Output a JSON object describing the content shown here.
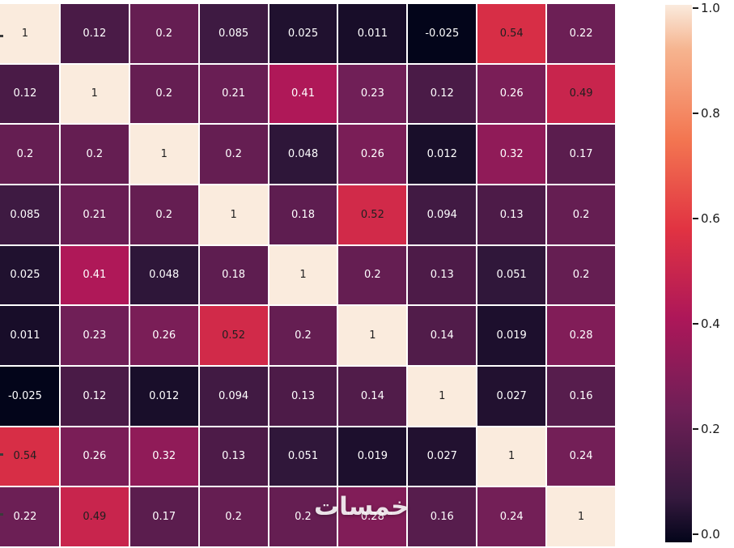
{
  "chart_data": {
    "type": "heatmap",
    "title": "",
    "rows": 9,
    "cols": 9,
    "vmin": -0.025,
    "vmax": 1.0,
    "matrix": [
      [
        1,
        0.12,
        0.2,
        0.085,
        0.025,
        0.011,
        -0.025,
        0.54,
        0.22
      ],
      [
        0.12,
        1,
        0.2,
        0.21,
        0.41,
        0.23,
        0.12,
        0.26,
        0.49
      ],
      [
        0.2,
        0.2,
        1,
        0.2,
        0.048,
        0.26,
        0.012,
        0.32,
        0.17
      ],
      [
        0.085,
        0.21,
        0.2,
        1,
        0.18,
        0.52,
        0.094,
        0.13,
        0.2
      ],
      [
        0.025,
        0.41,
        0.048,
        0.18,
        1,
        0.2,
        0.13,
        0.051,
        0.2
      ],
      [
        0.011,
        0.23,
        0.26,
        0.52,
        0.2,
        1,
        0.14,
        0.019,
        0.28
      ],
      [
        -0.025,
        0.12,
        0.012,
        0.094,
        0.13,
        0.14,
        1,
        0.027,
        0.16
      ],
      [
        0.54,
        0.26,
        0.32,
        0.13,
        0.051,
        0.019,
        0.027,
        1,
        0.24
      ],
      [
        0.22,
        0.49,
        0.17,
        0.2,
        0.2,
        0.28,
        0.16,
        0.24,
        1
      ]
    ],
    "labels": [
      [
        "1",
        "0.12",
        "0.2",
        "0.085",
        "0.025",
        "0.011",
        "-0.025",
        "0.54",
        "0.22"
      ],
      [
        "0.12",
        "1",
        "0.2",
        "0.21",
        "0.41",
        "0.23",
        "0.12",
        "0.26",
        "0.49"
      ],
      [
        "0.2",
        "0.2",
        "1",
        "0.2",
        "0.048",
        "0.26",
        "0.012",
        "0.32",
        "0.17"
      ],
      [
        "0.085",
        "0.21",
        "0.2",
        "1",
        "0.18",
        "0.52",
        "0.094",
        "0.13",
        "0.2"
      ],
      [
        "0.025",
        "0.41",
        "0.048",
        "0.18",
        "1",
        "0.2",
        "0.13",
        "0.051",
        "0.2"
      ],
      [
        "0.011",
        "0.23",
        "0.26",
        "0.52",
        "0.2",
        "1",
        "0.14",
        "0.019",
        "0.28"
      ],
      [
        "-0.025",
        "0.12",
        "0.012",
        "0.094",
        "0.13",
        "0.14",
        "1",
        "0.027",
        "0.16"
      ],
      [
        "0.54",
        "0.26",
        "0.32",
        "0.13",
        "0.051",
        "0.019",
        "0.027",
        "1",
        "0.24"
      ],
      [
        "0.22",
        "0.49",
        "0.17",
        "0.2",
        "0.2",
        "0.28",
        "0.16",
        "0.24",
        "1"
      ]
    ],
    "colormap": {
      "name": "rocket",
      "stops": [
        {
          "pos": 0.0,
          "rgb": [
            3,
            5,
            26
          ]
        },
        {
          "pos": 0.083,
          "rgb": [
            53,
            25,
            62
          ]
        },
        {
          "pos": 0.25,
          "rgb": [
            112,
            31,
            87
          ]
        },
        {
          "pos": 0.417,
          "rgb": [
            173,
            23,
            89
          ]
        },
        {
          "pos": 0.583,
          "rgb": [
            225,
            51,
            66
          ]
        },
        {
          "pos": 0.75,
          "rgb": [
            243,
            118,
            81
          ]
        },
        {
          "pos": 0.917,
          "rgb": [
            246,
            180,
            143
          ]
        },
        {
          "pos": 1.0,
          "rgb": [
            250,
            235,
            221
          ]
        }
      ]
    },
    "colorbar": {
      "position": "right",
      "ticks": [
        {
          "label": "1.0",
          "value": 1.0
        },
        {
          "label": "0.8",
          "value": 0.8
        },
        {
          "label": "0.6",
          "value": 0.6
        },
        {
          "label": "0.4",
          "value": 0.4
        },
        {
          "label": "0.2",
          "value": 0.2
        },
        {
          "label": "0.0",
          "value": 0.0
        }
      ]
    },
    "annotation_colors": {
      "dark_text": "#1f1f1f",
      "light_text": "#ffffff"
    }
  },
  "watermark": {
    "text": "خمسات"
  }
}
